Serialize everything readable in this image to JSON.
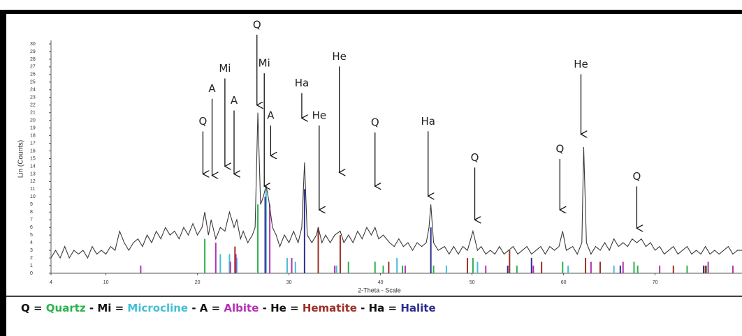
{
  "chart_data": {
    "type": "line",
    "x_label": "2-Theta - Scale",
    "y_label": "Lin (Counts)",
    "xlim": [
      4,
      80
    ],
    "ylim": [
      0,
      30
    ],
    "xticks": [
      4,
      10,
      20,
      30,
      40,
      50,
      60,
      70
    ],
    "yticks": [
      0,
      1,
      2,
      3,
      4,
      5,
      6,
      7,
      8,
      9,
      10,
      11,
      12,
      13,
      14,
      15,
      16,
      17,
      18,
      19,
      20,
      21,
      22,
      23,
      24,
      25,
      26,
      27,
      28,
      29,
      30
    ],
    "series": [
      {
        "name": "Lin (Counts)",
        "color": "#3a3a3a",
        "x": [
          4,
          4.5,
          5,
          5.5,
          6,
          6.5,
          7,
          7.5,
          8,
          8.5,
          9,
          9.5,
          10,
          10.5,
          11,
          11.5,
          12,
          12.5,
          13,
          13.5,
          14,
          14.5,
          15,
          15.5,
          16,
          16.5,
          17,
          17.5,
          18,
          18.5,
          19,
          19.5,
          20,
          20.5,
          20.8,
          21.2,
          21.5,
          22,
          22.5,
          23,
          23.5,
          24,
          24.3,
          24.7,
          25,
          25.5,
          26,
          26.3,
          26.6,
          26.9,
          27.2,
          27.5,
          27.8,
          28.2,
          28.6,
          29,
          29.5,
          30,
          30.5,
          31,
          31.4,
          31.7,
          32,
          32.5,
          33,
          33.2,
          33.6,
          34,
          34.5,
          35,
          35.6,
          36,
          36.5,
          37,
          37.5,
          38,
          38.5,
          39,
          39.4,
          39.8,
          40.3,
          41,
          41.5,
          42,
          42.5,
          43,
          43.5,
          44,
          44.5,
          45,
          45.3,
          45.5,
          45.8,
          46.3,
          47,
          47.5,
          48,
          48.5,
          49,
          49.5,
          50.1,
          50.6,
          51,
          51.5,
          52,
          52.5,
          53,
          53.5,
          54,
          54.5,
          55,
          55.5,
          56,
          56.5,
          57,
          57.5,
          58,
          58.5,
          59,
          59.5,
          59.9,
          60.3,
          61,
          61.5,
          62,
          62.2,
          62.5,
          63,
          63.5,
          64,
          64.5,
          65,
          65.5,
          66,
          66.5,
          67,
          67.5,
          68,
          68.5,
          69,
          69.5,
          70,
          70.5,
          71,
          71.5,
          72,
          72.5,
          73,
          73.5,
          74,
          74.5,
          75,
          75.5,
          76,
          76.5,
          77,
          77.5,
          78,
          78.5,
          79,
          79.5
        ],
        "values": [
          2,
          3,
          2,
          3.5,
          2,
          3,
          2.5,
          3,
          2,
          3.5,
          2.5,
          3,
          2.5,
          3.5,
          3,
          5.5,
          4,
          3,
          4,
          4.5,
          3.5,
          5,
          4,
          5.5,
          4.5,
          6,
          5,
          5.5,
          4.5,
          6,
          5,
          6.5,
          5,
          6,
          8,
          5,
          7,
          4.5,
          6,
          5.5,
          8,
          6,
          7,
          4.5,
          5.5,
          4,
          5,
          6,
          21,
          9,
          10,
          11.5,
          9.5,
          6,
          5,
          3.5,
          5,
          4,
          5.5,
          4,
          6,
          14.5,
          5,
          4,
          5,
          6,
          4,
          5,
          4,
          5,
          5.5,
          4,
          5,
          4,
          5.5,
          4.5,
          6,
          5,
          6,
          4.5,
          5,
          4,
          3.5,
          4.5,
          3.5,
          4,
          3,
          4,
          3.5,
          4,
          6,
          9,
          4,
          3,
          3.5,
          2.5,
          3.5,
          2.5,
          3.5,
          3,
          5.5,
          3,
          3.5,
          2.5,
          3,
          2.5,
          3.5,
          2.5,
          3,
          3.5,
          2.5,
          3,
          3.5,
          2.5,
          3,
          3.5,
          2.5,
          3.5,
          3,
          3.5,
          5.5,
          3,
          3.5,
          2.5,
          4,
          16.5,
          4,
          2.5,
          3.5,
          3,
          4,
          3,
          4.5,
          3.5,
          4,
          3.5,
          4.5,
          4,
          4.5,
          3.5,
          4,
          3,
          3.5,
          2.5,
          3,
          3.5,
          2.5,
          3,
          3.5,
          2.5,
          3,
          2.5,
          3.5,
          2.5,
          3,
          2.5,
          3,
          3.5,
          2.5,
          3,
          3
        ]
      }
    ],
    "sticks": [
      {
        "symbol": "Q",
        "name": "Quartz",
        "color": "#2bb24c",
        "x": [
          20.8,
          26.6,
          36.5,
          39.4,
          40.3,
          42.4,
          45.8,
          50.1,
          54.9,
          59.9,
          64.0,
          67.7,
          68.1,
          73.5,
          75.6
        ],
        "values": [
          4.5,
          9,
          1.5,
          1.5,
          1,
          1,
          1,
          2,
          1,
          1.5,
          1,
          1.5,
          1,
          1,
          1
        ]
      },
      {
        "symbol": "Mi",
        "name": "Microcline",
        "color": "#45bfd6",
        "x": [
          22.5,
          23.5,
          24.3,
          27.5,
          29.8,
          30.7,
          35.2,
          41.8,
          47.2,
          50.6,
          60.5,
          65.5
        ],
        "values": [
          2.5,
          2.5,
          2,
          11,
          2,
          1.5,
          1,
          2,
          1,
          1.5,
          1,
          1
        ]
      },
      {
        "symbol": "A",
        "name": "Albite",
        "color": "#b531b5",
        "x": [
          13.8,
          22.0,
          23.6,
          24.2,
          27.9,
          30.3,
          35.0,
          42.7,
          51.5,
          56.7,
          63.0,
          66.5,
          70.5,
          75.8,
          78.5
        ],
        "values": [
          1,
          4,
          1.5,
          2.5,
          9,
          2,
          1,
          1,
          1,
          1,
          1.5,
          1.5,
          1,
          1.5,
          1
        ]
      },
      {
        "symbol": "He",
        "name": "Hematite",
        "color": "#9c2f28",
        "x": [
          24.1,
          33.2,
          35.6,
          40.9,
          49.5,
          54.1,
          57.6,
          62.4,
          64.0,
          72.0,
          75.5
        ],
        "values": [
          3.5,
          6,
          5,
          1.5,
          2,
          3,
          1.5,
          2,
          1.5,
          1,
          1
        ]
      },
      {
        "symbol": "Ha",
        "name": "Halite",
        "color": "#2d2d8f",
        "x": [
          27.4,
          31.7,
          45.5,
          53.9,
          56.5,
          66.2,
          75.3
        ],
        "values": [
          10,
          11,
          6,
          1,
          2,
          1,
          1
        ]
      }
    ],
    "annotations": [
      {
        "text": "Q",
        "x": 20.6,
        "y": 12.9
      },
      {
        "text": "A",
        "x": 21.6,
        "y": 12.7
      },
      {
        "text": "Mi",
        "x": 23.0,
        "y": 13.9
      },
      {
        "text": "A",
        "x": 24.0,
        "y": 12.9
      },
      {
        "text": "Q",
        "x": 26.5,
        "y": 21.9
      },
      {
        "text": "Mi",
        "x": 27.3,
        "y": 11.3
      },
      {
        "text": "A",
        "x": 28.0,
        "y": 15.3
      },
      {
        "text": "Ha",
        "x": 31.4,
        "y": 20.2
      },
      {
        "text": "He",
        "x": 33.3,
        "y": 8.2
      },
      {
        "text": "He",
        "x": 35.5,
        "y": 13.1
      },
      {
        "text": "Q",
        "x": 39.4,
        "y": 11.3
      },
      {
        "text": "Ha",
        "x": 45.2,
        "y": 10.0
      },
      {
        "text": "Q",
        "x": 50.3,
        "y": 6.9
      },
      {
        "text": "Q",
        "x": 59.6,
        "y": 8.2
      },
      {
        "text": "He",
        "x": 61.9,
        "y": 18.1
      },
      {
        "text": "Q",
        "x": 68.0,
        "y": 5.8
      }
    ],
    "legend_equals": " = ",
    "legend_separator": " - ",
    "grid": false
  }
}
